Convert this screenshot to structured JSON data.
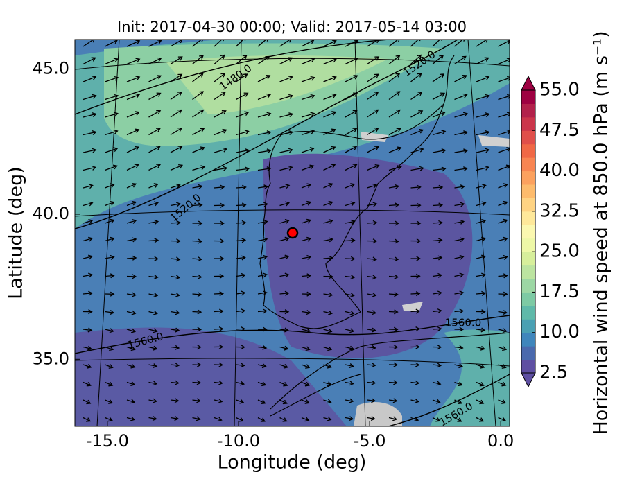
{
  "title": "Init: 2017-04-30 00:00; Valid: 2017-05-14 03:00",
  "x_axis": {
    "label": "Longitude (deg)",
    "lim": [
      -16.24,
      0.34
    ],
    "ticks": [
      {
        "value": -15,
        "label": "-15.0"
      },
      {
        "value": -10,
        "label": "-10.0"
      },
      {
        "value": -5,
        "label": "-5.0"
      },
      {
        "value": 0,
        "label": "0.0"
      }
    ]
  },
  "y_axis": {
    "label": "Latitude (deg)",
    "lim": [
      32.69,
      46.02
    ],
    "ticks": [
      {
        "value": 35,
        "label": "35.0"
      },
      {
        "value": 40,
        "label": "40.0"
      },
      {
        "value": 45,
        "label": "45.0"
      }
    ]
  },
  "colorbar": {
    "label": "Horizontal wind speed at 850.0 hPa (m s⁻¹)",
    "lim": [
      2.5,
      55
    ],
    "ticks": [
      {
        "value": 2.5,
        "label": "2.5"
      },
      {
        "value": 10,
        "label": "10.0"
      },
      {
        "value": 17.5,
        "label": "17.5"
      },
      {
        "value": 25,
        "label": "25.0"
      },
      {
        "value": 32.5,
        "label": "32.5"
      },
      {
        "value": 40,
        "label": "40.0"
      },
      {
        "value": 47.5,
        "label": "47.5"
      },
      {
        "value": 55,
        "label": "55.0"
      }
    ],
    "colors": [
      "#5e4fa2",
      "#4a69ad",
      "#3f86bc",
      "#4aa0b3",
      "#5fb9a9",
      "#7dcaa4",
      "#9cd7a4",
      "#bce4a0",
      "#d7ef9b",
      "#eef8a7",
      "#fbf8b0",
      "#fee89a",
      "#fed383",
      "#fdbb6c",
      "#fca15e",
      "#f88552",
      "#f06846",
      "#e04f4a",
      "#cb354b",
      "#b2214b",
      "#9e0142"
    ]
  },
  "contour_labels": [
    "1480.0",
    "1520.0",
    "1520.0",
    "1560.0",
    "1560.0",
    "1560.0"
  ]
}
